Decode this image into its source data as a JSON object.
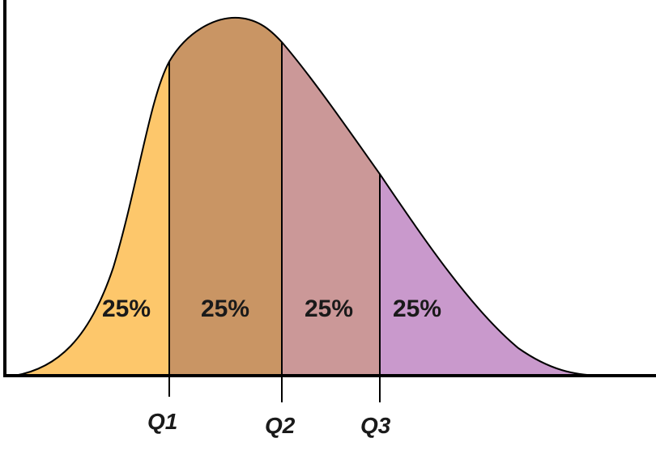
{
  "diagram": {
    "regions": [
      {
        "label": "25%",
        "color": "#fdc76b"
      },
      {
        "label": "25%",
        "color": "#c99564"
      },
      {
        "label": "25%",
        "color": "#cb9898"
      },
      {
        "label": "25%",
        "color": "#c999cc"
      }
    ],
    "quartiles": [
      {
        "label": "Q1"
      },
      {
        "label": "Q2"
      },
      {
        "label": "Q3"
      }
    ]
  }
}
